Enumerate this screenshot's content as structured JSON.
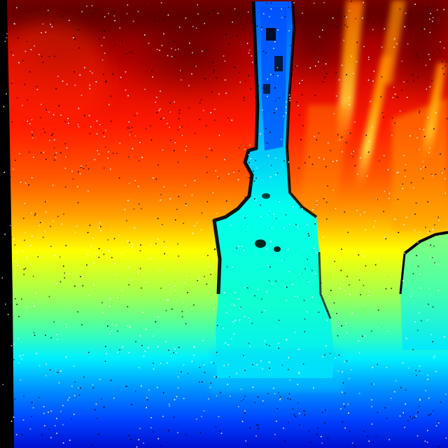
{
  "image": {
    "kind": "depth-map",
    "colormap": "jet",
    "palette": {
      "near": "#0000cc",
      "blue": "#0050ff",
      "cyan": "#00f0ff",
      "green": "#7dff60",
      "yellow": "#ffff00",
      "orange": "#ff9a00",
      "red": "#ff1a00",
      "far": "#7a0000",
      "invalid": "#000000",
      "noise": "#ffffff"
    }
  }
}
